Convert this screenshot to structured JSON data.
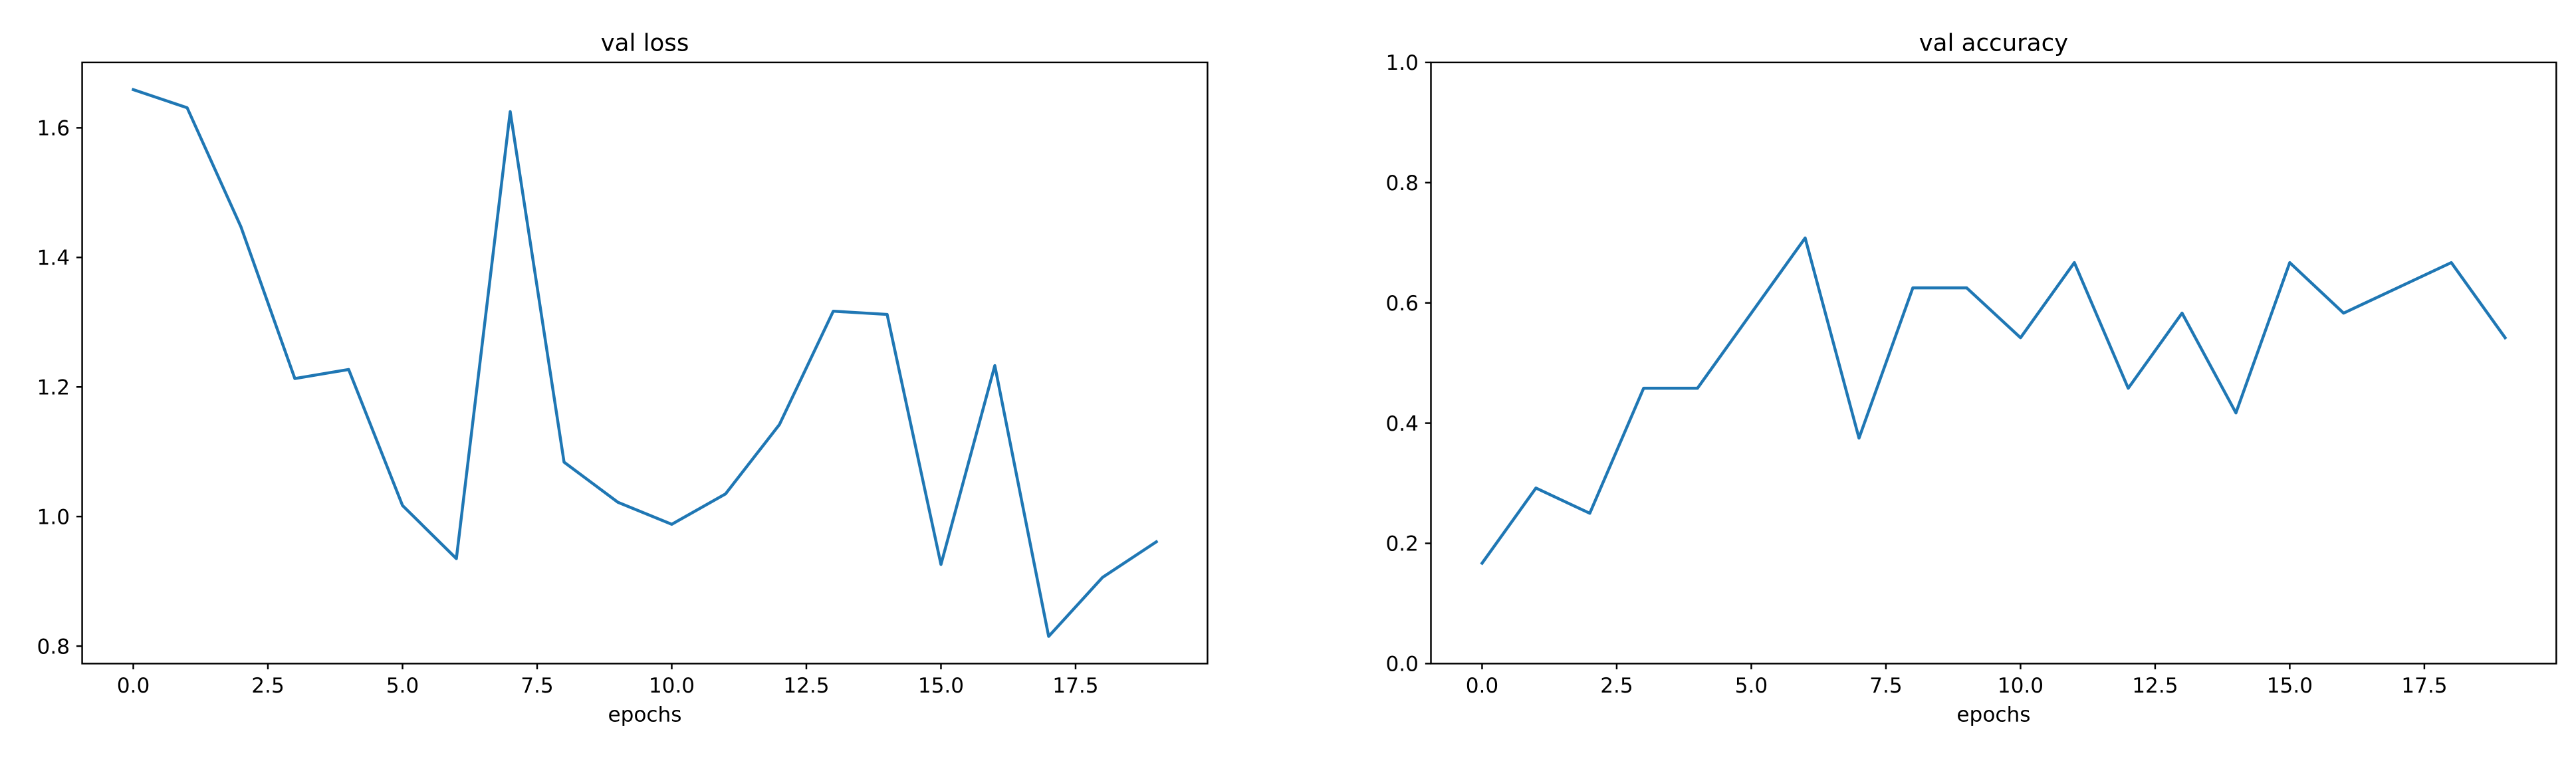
{
  "colors": {
    "line": "#1f77b4",
    "axes": "#000000",
    "background": "#ffffff"
  },
  "chart_data": [
    {
      "type": "line",
      "title": "val loss",
      "xlabel": "epochs",
      "ylabel": "",
      "xlim": [
        -0.95,
        19.95
      ],
      "ylim": [
        0.773,
        1.701
      ],
      "xticks": [
        0.0,
        2.5,
        5.0,
        7.5,
        10.0,
        12.5,
        15.0,
        17.5
      ],
      "xtick_labels": [
        "0.0",
        "2.5",
        "5.0",
        "7.5",
        "10.0",
        "12.5",
        "15.0",
        "17.5"
      ],
      "yticks": [
        0.8,
        1.0,
        1.2,
        1.4,
        1.6
      ],
      "ytick_labels": [
        "0.8",
        "1.0",
        "1.2",
        "1.4",
        "1.6"
      ],
      "grid": false,
      "x": [
        0,
        1,
        2,
        3,
        4,
        5,
        6,
        7,
        8,
        9,
        10,
        11,
        12,
        13,
        14,
        15,
        16,
        17,
        18,
        19
      ],
      "series": [
        {
          "values": [
            1.659,
            1.631,
            1.447,
            1.213,
            1.227,
            1.017,
            0.935,
            1.625,
            1.084,
            1.022,
            0.988,
            1.035,
            1.142,
            1.317,
            1.312,
            0.926,
            1.233,
            0.815,
            0.906,
            0.961
          ]
        }
      ]
    },
    {
      "type": "line",
      "title": "val accuracy",
      "xlabel": "epochs",
      "ylabel": "",
      "xlim": [
        -0.95,
        19.95
      ],
      "ylim": [
        0.0,
        1.0
      ],
      "xticks": [
        0.0,
        2.5,
        5.0,
        7.5,
        10.0,
        12.5,
        15.0,
        17.5
      ],
      "xtick_labels": [
        "0.0",
        "2.5",
        "5.0",
        "7.5",
        "10.0",
        "12.5",
        "15.0",
        "17.5"
      ],
      "yticks": [
        0.0,
        0.2,
        0.4,
        0.6,
        0.8,
        1.0
      ],
      "ytick_labels": [
        "0.0",
        "0.2",
        "0.4",
        "0.6",
        "0.8",
        "1.0"
      ],
      "grid": false,
      "x": [
        0,
        1,
        2,
        3,
        4,
        5,
        6,
        7,
        8,
        9,
        10,
        11,
        12,
        13,
        14,
        15,
        16,
        17,
        18,
        19
      ],
      "series": [
        {
          "values": [
            0.167,
            0.292,
            0.25,
            0.458,
            0.458,
            0.583,
            0.708,
            0.375,
            0.625,
            0.625,
            0.542,
            0.667,
            0.458,
            0.583,
            0.417,
            0.667,
            0.583,
            0.625,
            0.667,
            0.542
          ]
        }
      ]
    }
  ]
}
